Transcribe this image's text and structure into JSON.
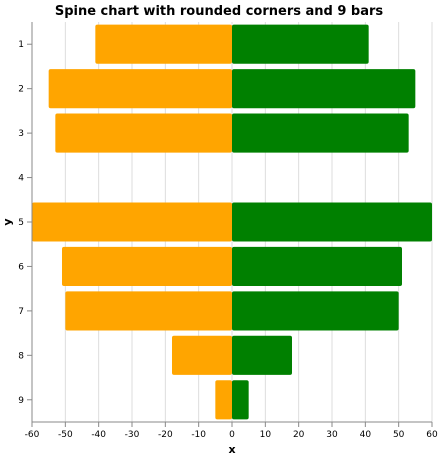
{
  "chart_data": {
    "type": "bar",
    "orientation": "horizontal-diverging",
    "title": "Spine chart with rounded corners and 9 bars",
    "xlabel": "x",
    "ylabel": "y",
    "xlim": [
      -60,
      60
    ],
    "x_ticks": [
      -60,
      -50,
      -40,
      -30,
      -20,
      -10,
      0,
      10,
      20,
      30,
      40,
      50,
      60
    ],
    "categories": [
      "1",
      "2",
      "3",
      "4",
      "5",
      "6",
      "7",
      "8",
      "9"
    ],
    "series": [
      {
        "color": "#FFA500",
        "values": [
          -41,
          -55,
          -53,
          0,
          -60,
          -51,
          -50,
          -18,
          -5
        ]
      },
      {
        "color": "#008000",
        "values": [
          41,
          55,
          53,
          0,
          60,
          51,
          50,
          18,
          5
        ]
      }
    ],
    "grid": true,
    "legend": "none"
  }
}
